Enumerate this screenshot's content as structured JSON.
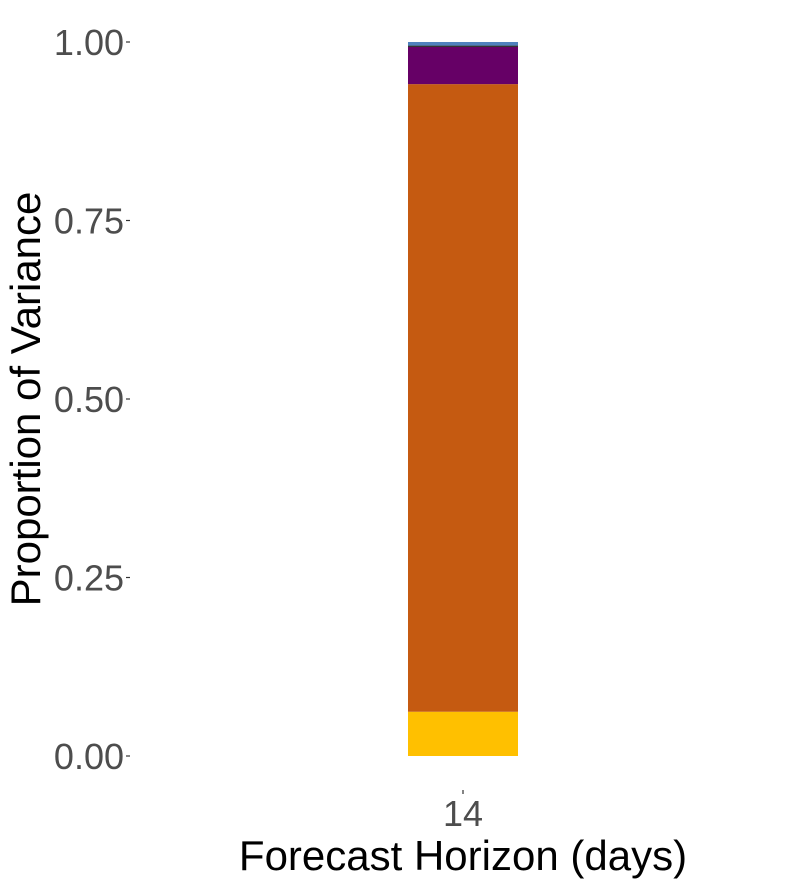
{
  "chart_data": {
    "type": "bar",
    "stacked": true,
    "categories": [
      "14"
    ],
    "xlabel": "Forecast Horizon (days)",
    "ylabel": "Proportion of Variance",
    "ylim": [
      0,
      1
    ],
    "yticks": [
      0,
      0.25,
      0.5,
      0.75,
      1
    ],
    "ytick_labels": [
      "0.00",
      "0.25",
      "0.50",
      "0.75",
      "1.00"
    ],
    "grid": false,
    "legend": "none",
    "series": [
      {
        "values": [
          0.062
        ],
        "color": "#FFC000"
      },
      {
        "values": [
          0.879
        ],
        "color": "#C55A11"
      },
      {
        "values": [
          0.052
        ],
        "color": "#660066"
      },
      {
        "values": [
          0.002
        ],
        "color": "#333333"
      },
      {
        "values": [
          0.005
        ],
        "color": "#4F81BD"
      }
    ]
  }
}
